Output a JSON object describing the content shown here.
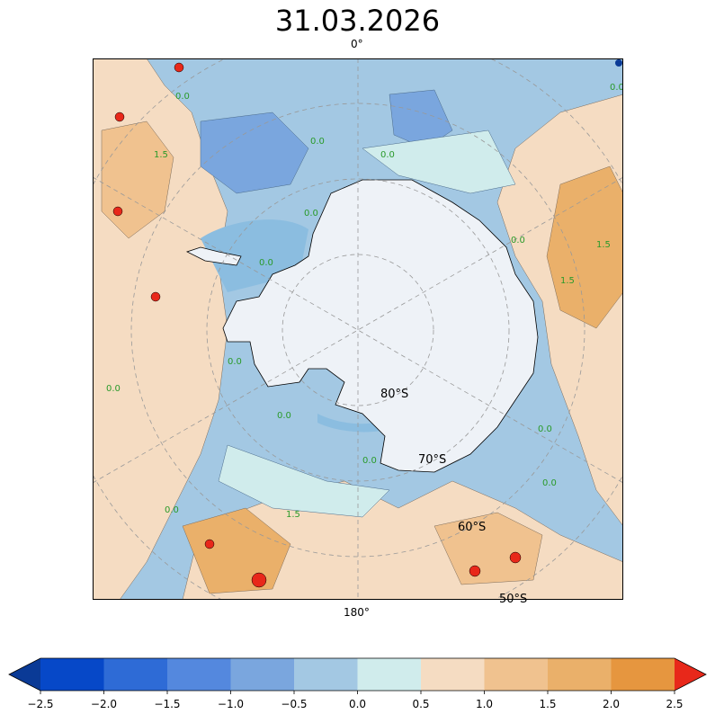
{
  "title": "31.03.2026",
  "map": {
    "longitude_labels": {
      "top": "0°",
      "bottom": "180°"
    },
    "latitude_labels": [
      "80°S",
      "70°S",
      "60°S",
      "50°S"
    ],
    "contour_label": "0.0",
    "contour_label_secondary": "1.5",
    "land_color": "#eef2f7",
    "ice_shelf_color": "#8bbde0"
  },
  "colorbar": {
    "ticks": [
      "−2.5",
      "−2.0",
      "−1.5",
      "−1.0",
      "−0.5",
      "0.0",
      "0.5",
      "1.0",
      "1.5",
      "2.0",
      "2.5"
    ],
    "under_color": "#0a3a96",
    "over_color": "#e8281a",
    "colors": [
      "#0648c8",
      "#2e6bd6",
      "#5488de",
      "#7aa6de",
      "#a3c8e3",
      "#d0ecec",
      "#f5dcc2",
      "#f0c28f",
      "#eab06a",
      "#e6963f"
    ]
  }
}
